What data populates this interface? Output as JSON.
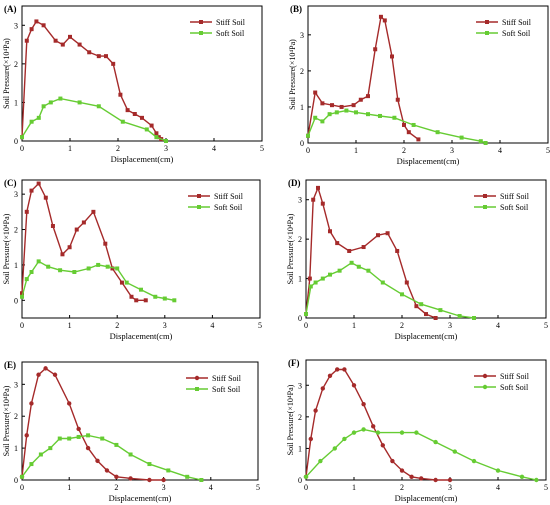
{
  "colors": {
    "stiff": "#a52a2a",
    "soft": "#66cc33",
    "axis": "#000000"
  },
  "chart_data": [
    {
      "type": "line",
      "panel_label": "(A)",
      "xlabel": "Displacement(cm)",
      "ylabel": "Soil Pressure(×10⁴Pa)",
      "xlim": [
        0,
        5
      ],
      "ylim": [
        0,
        3.5
      ],
      "xticks": [
        "0",
        "1",
        "2",
        "3",
        "4",
        "5"
      ],
      "yticks": [
        "0",
        "1",
        "2",
        "3"
      ],
      "legend_position": "top-right",
      "series": [
        {
          "name": "Stiff Soil",
          "marker": "square",
          "x": [
            0,
            0.1,
            0.2,
            0.3,
            0.45,
            0.7,
            0.85,
            1.0,
            1.2,
            1.4,
            1.6,
            1.75,
            1.9,
            2.05,
            2.2,
            2.35,
            2.5,
            2.7,
            2.8,
            2.85,
            2.9,
            3.0
          ],
          "y": [
            0.1,
            2.6,
            2.9,
            3.1,
            3.0,
            2.6,
            2.5,
            2.7,
            2.5,
            2.3,
            2.2,
            2.2,
            2.0,
            1.2,
            0.8,
            0.7,
            0.6,
            0.4,
            0.2,
            0.1,
            0.05,
            0.0
          ]
        },
        {
          "name": "Soft Soil",
          "marker": "square",
          "x": [
            0,
            0.2,
            0.35,
            0.45,
            0.6,
            0.8,
            1.2,
            1.6,
            2.1,
            2.6,
            2.8,
            3.0
          ],
          "y": [
            0.1,
            0.5,
            0.6,
            0.9,
            1.0,
            1.1,
            1.0,
            0.9,
            0.5,
            0.3,
            0.1,
            0.0
          ]
        }
      ]
    },
    {
      "type": "line",
      "panel_label": "(B)",
      "xlabel": "Displacement(cm)",
      "ylabel": "Soil Pressure(×10⁴Pa)",
      "xlim": [
        0,
        5
      ],
      "ylim": [
        0,
        3.8
      ],
      "xticks": [
        "0",
        "1",
        "2",
        "3",
        "4",
        "5"
      ],
      "yticks": [
        "0",
        "1",
        "2",
        "3"
      ],
      "legend_position": "top-right",
      "series": [
        {
          "name": "Stiff Soil",
          "marker": "square",
          "x": [
            0,
            0.15,
            0.3,
            0.5,
            0.7,
            0.95,
            1.1,
            1.25,
            1.4,
            1.52,
            1.6,
            1.75,
            1.87,
            2.0,
            2.1,
            2.3
          ],
          "y": [
            0.2,
            1.4,
            1.1,
            1.05,
            1.0,
            1.05,
            1.2,
            1.3,
            2.6,
            3.5,
            3.4,
            2.4,
            1.2,
            0.5,
            0.3,
            0.1
          ]
        },
        {
          "name": "Soft Soil",
          "marker": "square",
          "x": [
            0,
            0.15,
            0.3,
            0.45,
            0.6,
            0.8,
            1.0,
            1.25,
            1.5,
            1.8,
            2.2,
            2.7,
            3.2,
            3.6,
            3.7
          ],
          "y": [
            0.2,
            0.7,
            0.6,
            0.8,
            0.85,
            0.9,
            0.85,
            0.8,
            0.75,
            0.7,
            0.5,
            0.3,
            0.15,
            0.05,
            0.0
          ]
        }
      ]
    },
    {
      "type": "line",
      "panel_label": "(C)",
      "xlabel": "Displacement(cm)",
      "ylabel": "Soil Pressure(×10⁴Pa)",
      "xlim": [
        0,
        5
      ],
      "ylim": [
        -0.5,
        3.4
      ],
      "xticks": [
        "0",
        "1",
        "2",
        "3",
        "4",
        "5"
      ],
      "yticks": [
        "0",
        "1",
        "2",
        "3"
      ],
      "legend_position": "top-right",
      "series": [
        {
          "name": "Stiff Soil",
          "marker": "square",
          "x": [
            0,
            0.1,
            0.2,
            0.35,
            0.5,
            0.65,
            0.85,
            1.0,
            1.15,
            1.3,
            1.5,
            1.75,
            1.9,
            2.1,
            2.3,
            2.4,
            2.6
          ],
          "y": [
            0.2,
            2.5,
            3.1,
            3.3,
            2.9,
            2.1,
            1.3,
            1.5,
            2.0,
            2.2,
            2.5,
            1.6,
            0.9,
            0.5,
            0.1,
            0.0,
            0.0
          ]
        },
        {
          "name": "Soft Soil",
          "marker": "square",
          "x": [
            0,
            0.1,
            0.2,
            0.35,
            0.55,
            0.8,
            1.1,
            1.4,
            1.6,
            1.8,
            2.0,
            2.2,
            2.5,
            2.8,
            3.0,
            3.2
          ],
          "y": [
            0.1,
            0.6,
            0.8,
            1.1,
            0.95,
            0.85,
            0.8,
            0.9,
            1.0,
            0.95,
            0.9,
            0.5,
            0.3,
            0.1,
            0.05,
            0.0
          ]
        }
      ]
    },
    {
      "type": "line",
      "panel_label": "(D)",
      "xlabel": "Displacement(cm)",
      "ylabel": "Soil Pressure(×10⁴Pa)",
      "xlim": [
        0,
        5
      ],
      "ylim": [
        0,
        3.5
      ],
      "xticks": [
        "0",
        "1",
        "2",
        "3",
        "4",
        "5"
      ],
      "yticks": [
        "0",
        "1",
        "2",
        "3"
      ],
      "legend_position": "top-right",
      "series": [
        {
          "name": "Stiff Soil",
          "marker": "square",
          "x": [
            0,
            0.08,
            0.15,
            0.25,
            0.35,
            0.5,
            0.65,
            0.9,
            1.2,
            1.5,
            1.7,
            1.9,
            2.1,
            2.3,
            2.5,
            2.7
          ],
          "y": [
            0.1,
            1.0,
            3.0,
            3.3,
            2.9,
            2.2,
            1.9,
            1.7,
            1.8,
            2.1,
            2.15,
            1.7,
            0.9,
            0.3,
            0.1,
            0.0
          ]
        },
        {
          "name": "Soft Soil",
          "marker": "square",
          "x": [
            0,
            0.1,
            0.2,
            0.35,
            0.5,
            0.7,
            0.95,
            1.1,
            1.3,
            1.6,
            2.0,
            2.4,
            2.8,
            3.2,
            3.5
          ],
          "y": [
            0.1,
            0.8,
            0.9,
            1.0,
            1.1,
            1.2,
            1.4,
            1.3,
            1.2,
            0.9,
            0.6,
            0.35,
            0.2,
            0.05,
            0.0
          ]
        }
      ]
    },
    {
      "type": "line",
      "panel_label": "(E)",
      "xlabel": "Displacement(cm)",
      "ylabel": "Soil Pressure(×10⁴Pa)",
      "xlim": [
        0,
        5
      ],
      "ylim": [
        0,
        3.7
      ],
      "xticks": [
        "0",
        "1",
        "2",
        "3",
        "4",
        "5"
      ],
      "yticks": [
        "0",
        "1",
        "2",
        "3"
      ],
      "legend_position": "top-right",
      "series": [
        {
          "name": "Stiff Soil",
          "marker": "circle",
          "x": [
            0,
            0.1,
            0.2,
            0.35,
            0.5,
            0.7,
            1.0,
            1.2,
            1.4,
            1.6,
            1.8,
            2.0,
            2.3,
            2.7,
            3.0
          ],
          "y": [
            0.1,
            1.4,
            2.4,
            3.3,
            3.5,
            3.3,
            2.4,
            1.6,
            1.0,
            0.6,
            0.3,
            0.1,
            0.05,
            0.0,
            0.0
          ]
        },
        {
          "name": "Soft Soil",
          "marker": "square",
          "x": [
            0,
            0.2,
            0.4,
            0.6,
            0.8,
            1.0,
            1.2,
            1.4,
            1.7,
            2.0,
            2.3,
            2.7,
            3.1,
            3.5,
            3.8
          ],
          "y": [
            0.1,
            0.5,
            0.8,
            1.0,
            1.3,
            1.3,
            1.35,
            1.4,
            1.3,
            1.1,
            0.8,
            0.5,
            0.3,
            0.1,
            0.0
          ]
        }
      ]
    },
    {
      "type": "line",
      "panel_label": "(F)",
      "xlabel": "Displacement(cm)",
      "ylabel": "Soil Pressure(×10⁴Pa)",
      "xlim": [
        0,
        5
      ],
      "ylim": [
        0,
        3.8
      ],
      "xticks": [
        "0",
        "1",
        "2",
        "3",
        "4",
        "5"
      ],
      "yticks": [
        "0",
        "1",
        "2",
        "3"
      ],
      "legend_position": "top-right",
      "series": [
        {
          "name": "Stiff Soil",
          "marker": "circle",
          "x": [
            0,
            0.1,
            0.2,
            0.35,
            0.5,
            0.65,
            0.8,
            1.0,
            1.2,
            1.4,
            1.6,
            1.8,
            2.0,
            2.2,
            2.4,
            2.7,
            3.0
          ],
          "y": [
            0.1,
            1.3,
            2.2,
            2.9,
            3.3,
            3.5,
            3.5,
            3.0,
            2.4,
            1.7,
            1.1,
            0.6,
            0.3,
            0.1,
            0.05,
            0.0,
            0.0
          ]
        },
        {
          "name": "Soft Soil",
          "marker": "circle",
          "x": [
            0,
            0.3,
            0.6,
            0.8,
            1.0,
            1.2,
            1.5,
            2.0,
            2.3,
            2.7,
            3.1,
            3.5,
            4.0,
            4.5,
            4.8
          ],
          "y": [
            0.1,
            0.6,
            1.0,
            1.3,
            1.5,
            1.6,
            1.5,
            1.5,
            1.5,
            1.2,
            0.9,
            0.6,
            0.3,
            0.1,
            0.0
          ]
        }
      ]
    }
  ]
}
